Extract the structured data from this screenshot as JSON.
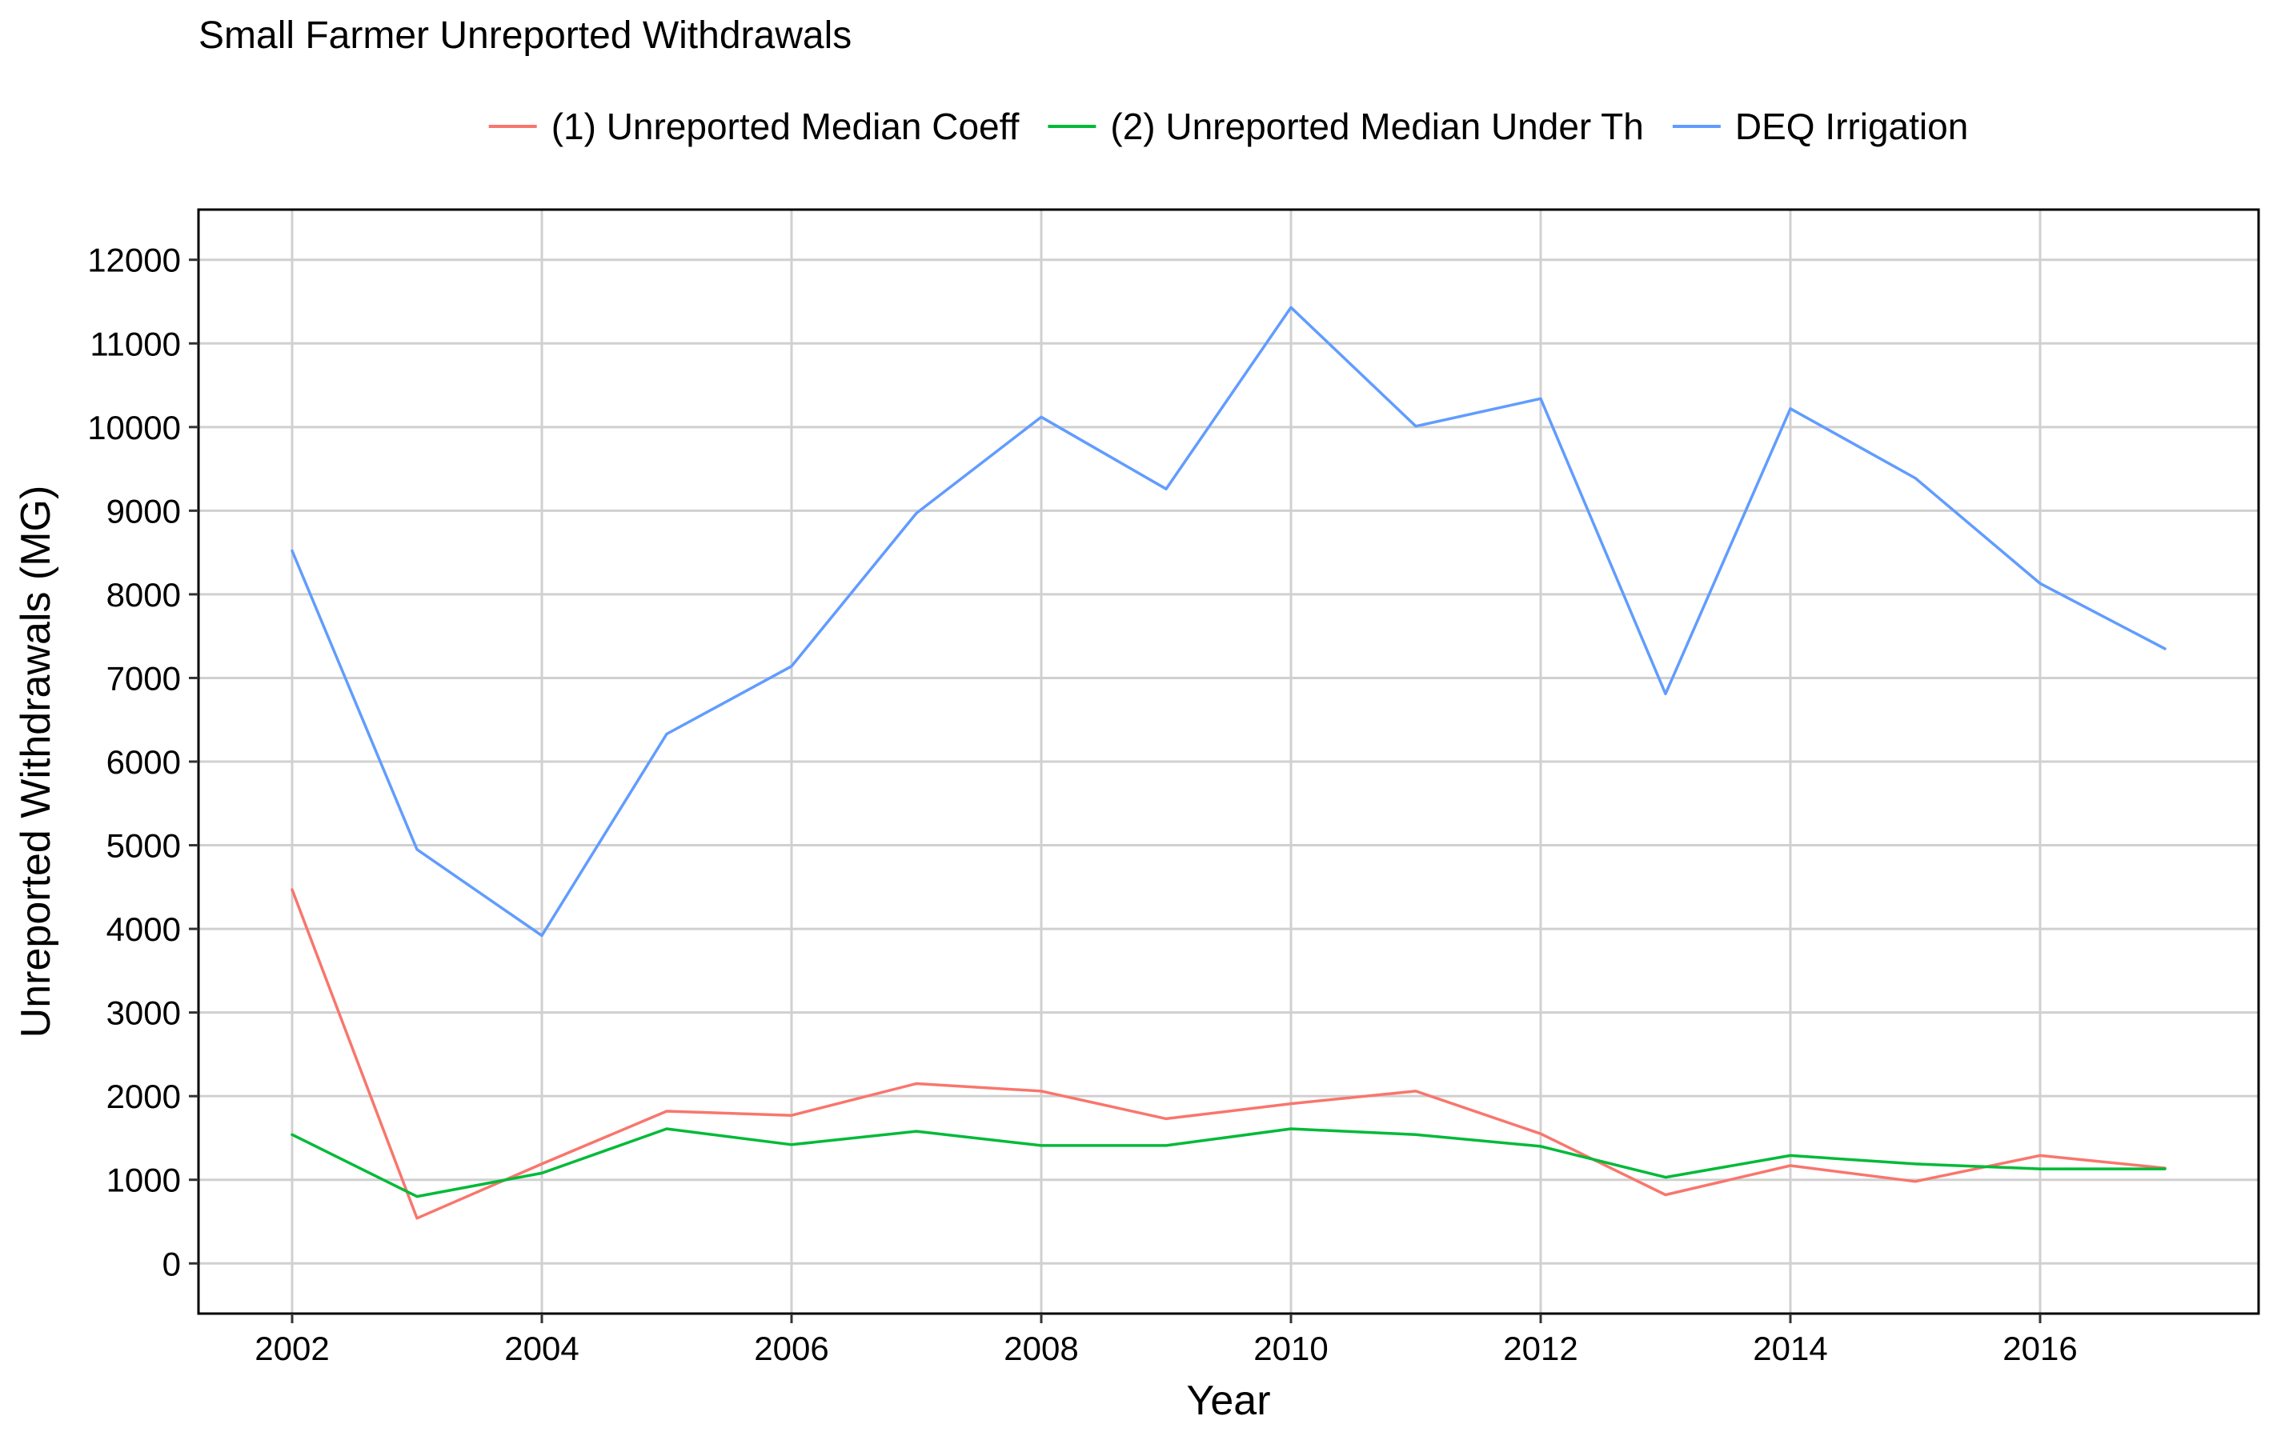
{
  "chart_data": {
    "type": "line",
    "title": "Small Farmer Unreported Withdrawals",
    "xlabel": "Year",
    "ylabel": "Unreported Withdrawals (MG)",
    "x": [
      2002,
      2003,
      2004,
      2005,
      2006,
      2007,
      2008,
      2009,
      2010,
      2011,
      2012,
      2013,
      2014,
      2015,
      2016,
      2017
    ],
    "xticks": [
      2002,
      2004,
      2006,
      2008,
      2010,
      2012,
      2014,
      2016
    ],
    "yticks": [
      0,
      1000,
      2000,
      3000,
      4000,
      5000,
      6000,
      7000,
      8000,
      9000,
      10000,
      11000,
      12000
    ],
    "xlim": [
      2001.25,
      2017.75
    ],
    "ylim": [
      -600,
      12600
    ],
    "grid": true,
    "legend_position": "top",
    "series": [
      {
        "name": "(1) Unreported Median Coeff",
        "color": "#F8766D",
        "values": [
          4470,
          540,
          1190,
          1820,
          1770,
          2150,
          2060,
          1730,
          1910,
          2060,
          1550,
          820,
          1170,
          980,
          1290,
          1140
        ]
      },
      {
        "name": "(2) Unreported Median Under Th",
        "color": "#00BA38",
        "values": [
          1540,
          800,
          1080,
          1610,
          1420,
          1580,
          1410,
          1410,
          1610,
          1540,
          1400,
          1030,
          1290,
          1190,
          1130,
          1130
        ]
      },
      {
        "name": "DEQ Irrigation",
        "color": "#619CFF",
        "values": [
          8520,
          4950,
          3920,
          6330,
          7140,
          8970,
          10120,
          9260,
          11430,
          10010,
          10340,
          6810,
          10220,
          9390,
          8130,
          7350
        ]
      }
    ]
  }
}
